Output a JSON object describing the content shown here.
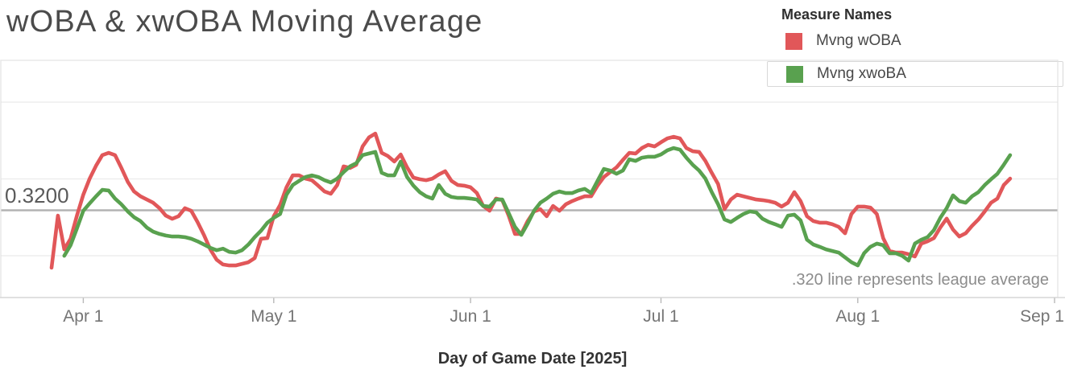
{
  "title": "wOBA & xwOBA Moving Average",
  "legend": {
    "title": "Measure Names",
    "items": [
      {
        "label": "Mvng wOBA",
        "color": "#e15759"
      },
      {
        "label": "Mvng xwoBA",
        "color": "#59a14f"
      }
    ]
  },
  "reference_line": {
    "label": "0.3200",
    "value": 0.32,
    "annotation": ".320 line represents league average",
    "color": "#b3b3b3"
  },
  "x_axis": {
    "title": "Day of Game Date [2025]",
    "tick_labels": [
      "Apr 1",
      "May 1",
      "Jun 1",
      "Jul 1",
      "Aug 1",
      "Sep 1"
    ]
  },
  "chart_data": {
    "type": "line",
    "title": "wOBA & xwOBA Moving Average",
    "xlabel": "Day of Game Date [2025]",
    "ylabel": "",
    "x_start_date": "2025-03-27",
    "x_interval": "daily",
    "x_ticks": [
      {
        "label": "Apr 1",
        "day_index": 5
      },
      {
        "label": "May 1",
        "day_index": 35
      },
      {
        "label": "Jun 1",
        "day_index": 66
      },
      {
        "label": "Jul 1",
        "day_index": 96
      },
      {
        "label": "Aug 1",
        "day_index": 127
      },
      {
        "label": "Sep 1",
        "day_index": 158
      }
    ],
    "y_axis": {
      "labels_hidden": true,
      "approx_range": [
        0.282,
        0.385
      ]
    },
    "grid": "horizontal-light",
    "legend_position": "top-right",
    "reference_line": {
      "value": 0.32,
      "label": "0.3200"
    },
    "series": [
      {
        "name": "Mvng wOBA",
        "color": "#e15759",
        "values": [
          0.295,
          0.3177,
          0.303,
          0.3076,
          0.3177,
          0.3268,
          0.3338,
          0.3394,
          0.344,
          0.345,
          0.344,
          0.3384,
          0.3324,
          0.3282,
          0.3261,
          0.3247,
          0.3233,
          0.3209,
          0.3177,
          0.3163,
          0.3174,
          0.3209,
          0.3198,
          0.3149,
          0.3093,
          0.303,
          0.2985,
          0.2964,
          0.296,
          0.296,
          0.2967,
          0.2974,
          0.2992,
          0.3076,
          0.3079,
          0.3174,
          0.3223,
          0.33,
          0.3352,
          0.3352,
          0.3338,
          0.3331,
          0.3307,
          0.3282,
          0.3272,
          0.331,
          0.3391,
          0.3384,
          0.3398,
          0.3478,
          0.3517,
          0.3534,
          0.345,
          0.3436,
          0.3412,
          0.3443,
          0.3387,
          0.3342,
          0.3335,
          0.3331,
          0.3338,
          0.3356,
          0.337,
          0.3328,
          0.331,
          0.3307,
          0.33,
          0.3275,
          0.3219,
          0.3198,
          0.3251,
          0.3244,
          0.3177,
          0.3097,
          0.3097,
          0.3153,
          0.3195,
          0.3205,
          0.3174,
          0.3219,
          0.3198,
          0.3226,
          0.324,
          0.3251,
          0.3261,
          0.3261,
          0.3307,
          0.3345,
          0.3366,
          0.3387,
          0.3419,
          0.345,
          0.3447,
          0.3471,
          0.3485,
          0.3478,
          0.3496,
          0.3513,
          0.352,
          0.3513,
          0.3471,
          0.3457,
          0.3454,
          0.3415,
          0.3363,
          0.3314,
          0.3205,
          0.3247,
          0.3268,
          0.3261,
          0.3254,
          0.3247,
          0.3244,
          0.324,
          0.3233,
          0.3216,
          0.3233,
          0.3279,
          0.324,
          0.3174,
          0.3153,
          0.3146,
          0.3146,
          0.3139,
          0.3128,
          0.31,
          0.3184,
          0.3216,
          0.3216,
          0.3212,
          0.3184,
          0.3079,
          0.3023,
          0.3016,
          0.3016,
          0.3009,
          0.2999,
          0.3055,
          0.3065,
          0.3079,
          0.3125,
          0.3164,
          0.3116,
          0.3086,
          0.31,
          0.3132,
          0.316,
          0.3195,
          0.3233,
          0.3251,
          0.331,
          0.3338
        ]
      },
      {
        "name": "Mvng xwoBA",
        "color": "#59a14f",
        "values": [
          null,
          null,
          0.3002,
          0.3048,
          0.3121,
          0.3198,
          0.323,
          0.3261,
          0.3289,
          0.3286,
          0.3251,
          0.3226,
          0.3195,
          0.317,
          0.3153,
          0.3125,
          0.3107,
          0.3097,
          0.309,
          0.3086,
          0.3086,
          0.3083,
          0.3076,
          0.3065,
          0.3051,
          0.3037,
          0.3026,
          0.3033,
          0.3019,
          0.3016,
          0.3026,
          0.3051,
          0.3083,
          0.3111,
          0.3146,
          0.3167,
          0.3184,
          0.3268,
          0.331,
          0.3328,
          0.3345,
          0.3352,
          0.3345,
          0.3331,
          0.3321,
          0.3338,
          0.3366,
          0.3391,
          0.3405,
          0.344,
          0.3447,
          0.3454,
          0.3363,
          0.3352,
          0.3352,
          0.3412,
          0.3345,
          0.3307,
          0.3279,
          0.3261,
          0.3251,
          0.331,
          0.3272,
          0.3258,
          0.3254,
          0.3254,
          0.3251,
          0.3247,
          0.3219,
          0.3216,
          0.3247,
          0.3247,
          0.3188,
          0.3128,
          0.3093,
          0.3142,
          0.3198,
          0.3233,
          0.3251,
          0.3272,
          0.3282,
          0.3275,
          0.3275,
          0.3286,
          0.3293,
          0.3275,
          0.3328,
          0.338,
          0.3373,
          0.3359,
          0.3373,
          0.3422,
          0.3415,
          0.3429,
          0.3433,
          0.3433,
          0.3443,
          0.3461,
          0.3471,
          0.3464,
          0.3429,
          0.3398,
          0.3373,
          0.3338,
          0.3279,
          0.3226,
          0.316,
          0.3149,
          0.3167,
          0.3184,
          0.3195,
          0.3191,
          0.3163,
          0.3149,
          0.3139,
          0.3128,
          0.3177,
          0.3181,
          0.3156,
          0.3072,
          0.3051,
          0.3041,
          0.303,
          0.3023,
          0.3016,
          0.2995,
          0.2974,
          0.296,
          0.3013,
          0.3041,
          0.3055,
          0.3048,
          0.3013,
          0.3013,
          0.3002,
          0.2981,
          0.3055,
          0.3072,
          0.3083,
          0.3114,
          0.3167,
          0.3209,
          0.3265,
          0.324,
          0.3233,
          0.3261,
          0.3279,
          0.331,
          0.3335,
          0.3359,
          0.3398,
          0.344
        ]
      }
    ]
  }
}
